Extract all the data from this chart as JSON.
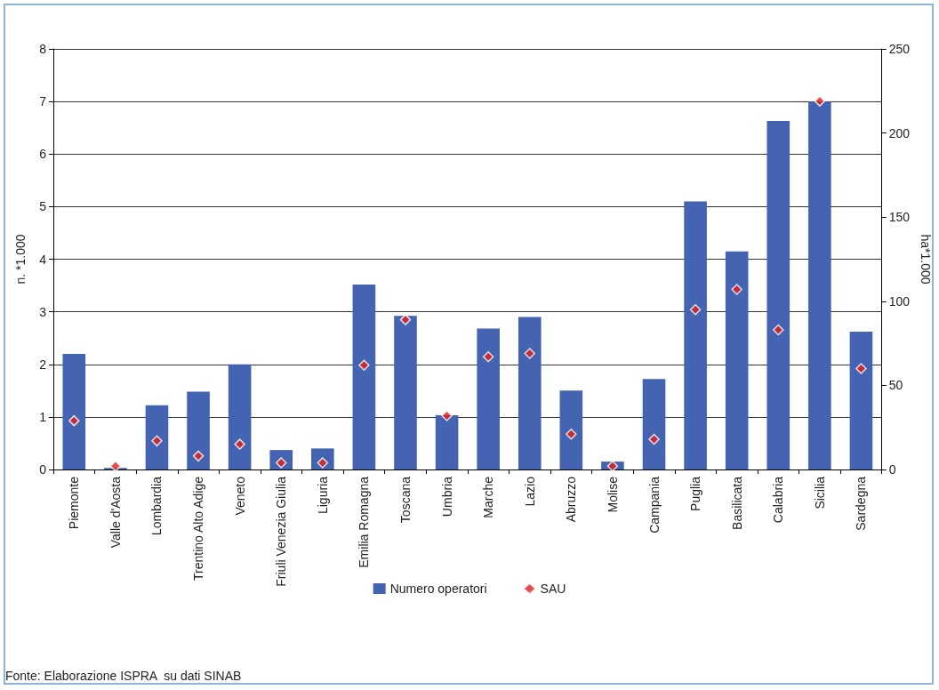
{
  "chart_data": {
    "type": "bar",
    "categories": [
      "Piemonte",
      "Valle d'Aosta",
      "Lombardia",
      "Trentino Alto Adige",
      "Veneto",
      "Friuli Venezia Giulia",
      "Liguria",
      "Emilia Romagna",
      "Toscana",
      "Umbria",
      "Marche",
      "Lazio",
      "Abruzzo",
      "Molise",
      "Campania",
      "Puglia",
      "Basilicata",
      "Calabria",
      "Sicilia",
      "Sardegna"
    ],
    "series": [
      {
        "name": "Numero operatori",
        "color": "#4463b0",
        "values": [
          2.2,
          0.03,
          1.22,
          1.48,
          2.0,
          0.37,
          0.4,
          3.52,
          2.92,
          1.03,
          2.68,
          2.9,
          1.5,
          0.15,
          1.72,
          5.1,
          4.15,
          6.63,
          7.0,
          2.62
        ]
      },
      {
        "name": "SAU",
        "type": "scatter",
        "axis": "y2",
        "color": "#e0201b",
        "marker": "diamond",
        "values": [
          29,
          2,
          17,
          8,
          15,
          4,
          4,
          62,
          89,
          32,
          67,
          69,
          21,
          2,
          18,
          95,
          107,
          83,
          219,
          60
        ]
      }
    ],
    "ylabel": "n. *1.000",
    "y2label": "ha*1.000",
    "ylim": [
      0,
      8
    ],
    "yticks": [
      0,
      1,
      2,
      3,
      4,
      5,
      6,
      7,
      8
    ],
    "y2lim": [
      0,
      250
    ],
    "y2ticks": [
      0,
      50,
      100,
      150,
      200,
      250
    ],
    "grid": "y",
    "legend": "bottom",
    "annotations": [
      "Fonte: Elaborazione ISPRA  su dati SINAB"
    ]
  }
}
